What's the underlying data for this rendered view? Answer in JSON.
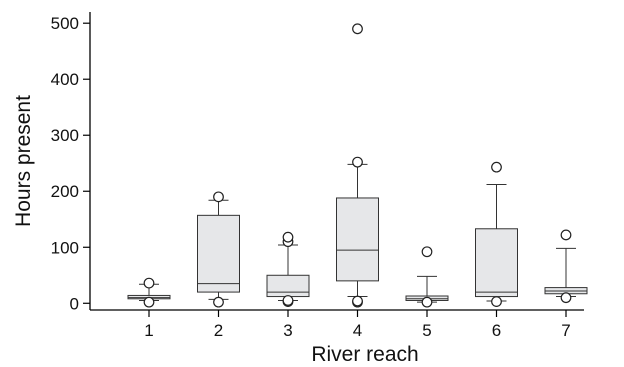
{
  "chart_data": {
    "type": "box",
    "xlabel": "River reach",
    "ylabel": "Hours present",
    "ylim": [
      -12,
      520
    ],
    "yticks": [
      0,
      100,
      200,
      300,
      400,
      500
    ],
    "categories": [
      "1",
      "2",
      "3",
      "4",
      "5",
      "6",
      "7"
    ],
    "boxes": [
      {
        "category": "1",
        "whisker_low": 5,
        "q1": 8,
        "median": 10,
        "q3": 14,
        "whisker_high": 34,
        "outliers": [
          2,
          36
        ]
      },
      {
        "category": "2",
        "whisker_low": 7,
        "q1": 20,
        "median": 35,
        "q3": 157,
        "whisker_high": 184,
        "outliers": [
          2,
          190
        ]
      },
      {
        "category": "3",
        "whisker_low": 5,
        "q1": 12,
        "median": 20,
        "q3": 50,
        "whisker_high": 104,
        "outliers": [
          3,
          5,
          110,
          118
        ]
      },
      {
        "category": "4",
        "whisker_low": 12,
        "q1": 40,
        "median": 95,
        "q3": 188,
        "whisker_high": 248,
        "outliers": [
          2,
          4,
          252,
          490
        ]
      },
      {
        "category": "5",
        "whisker_low": 2,
        "q1": 5,
        "median": 8,
        "q3": 13,
        "whisker_high": 48,
        "outliers": [
          2,
          92
        ]
      },
      {
        "category": "6",
        "whisker_low": 4,
        "q1": 12,
        "median": 20,
        "q3": 133,
        "whisker_high": 212,
        "outliers": [
          3,
          243
        ]
      },
      {
        "category": "7",
        "whisker_low": 12,
        "q1": 17,
        "median": 22,
        "q3": 28,
        "whisker_high": 98,
        "outliers": [
          10,
          122
        ]
      }
    ]
  },
  "colors": {
    "box_fill": "#e6e7e9",
    "box_stroke": "#333333",
    "axis": "#000000",
    "outlier_fill": "#ffffff"
  }
}
